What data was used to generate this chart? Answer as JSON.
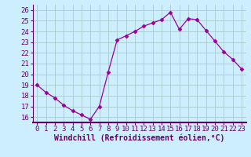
{
  "x": [
    0,
    1,
    2,
    3,
    4,
    5,
    6,
    7,
    8,
    9,
    10,
    11,
    12,
    13,
    14,
    15,
    16,
    17,
    18,
    19,
    20,
    21,
    22,
    23
  ],
  "y": [
    19,
    18.3,
    17.8,
    17.1,
    16.6,
    16.2,
    15.8,
    17.0,
    20.2,
    23.2,
    23.6,
    24.0,
    24.5,
    24.8,
    25.1,
    25.8,
    24.2,
    25.2,
    25.1,
    24.1,
    23.1,
    22.1,
    21.4,
    20.5
  ],
  "line_color": "#990099",
  "marker": "D",
  "marker_size": 2.5,
  "bg_color": "#cceeff",
  "grid_color": "#aacccc",
  "xlabel": "Windchill (Refroidissement éolien,°C)",
  "xlabel_color": "#660066",
  "xlabel_fontsize": 7,
  "tick_color": "#660066",
  "tick_fontsize": 6.5,
  "ylim": [
    15.5,
    26.5
  ],
  "xlim": [
    -0.5,
    23.5
  ],
  "yticks": [
    16,
    17,
    18,
    19,
    20,
    21,
    22,
    23,
    24,
    25,
    26
  ],
  "xticks": [
    0,
    1,
    2,
    3,
    4,
    5,
    6,
    7,
    8,
    9,
    10,
    11,
    12,
    13,
    14,
    15,
    16,
    17,
    18,
    19,
    20,
    21,
    22,
    23
  ],
  "axis_line_color": "#660066"
}
